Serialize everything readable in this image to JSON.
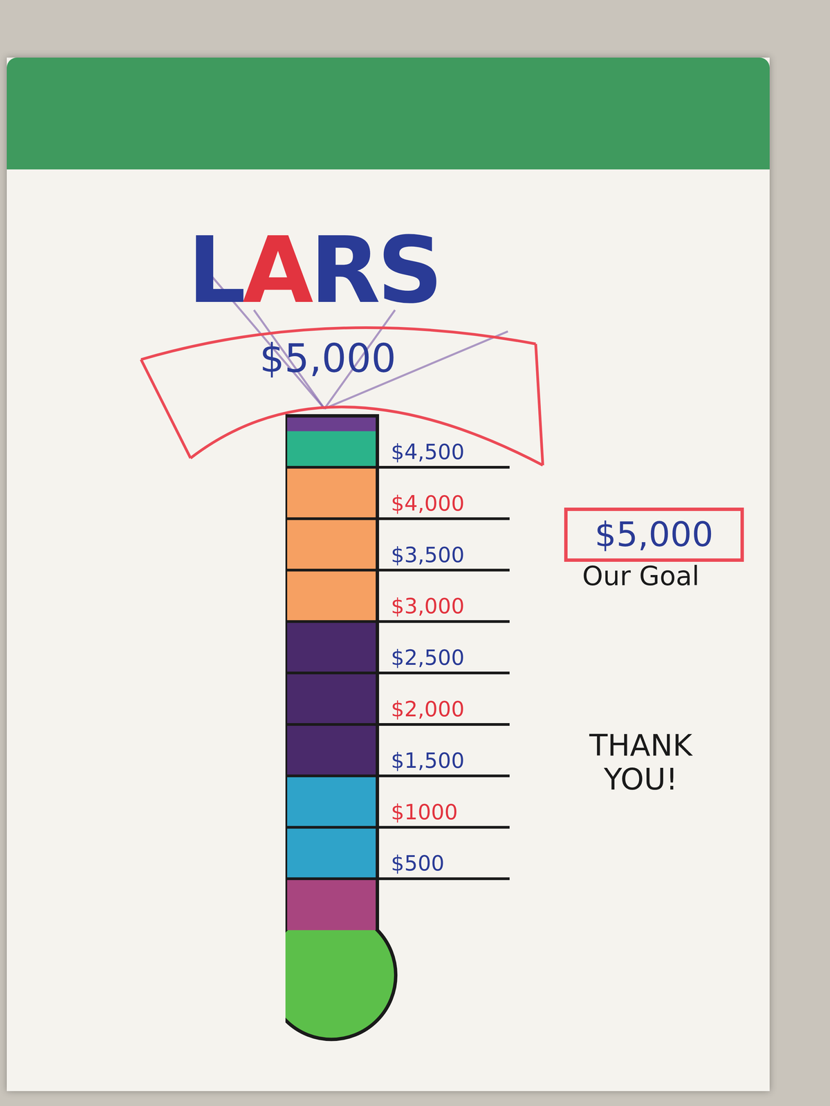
{
  "chart_data": {
    "type": "bar",
    "title": "LARS",
    "subtitle": "$5,000",
    "annotations": [
      "$5,000",
      "Our Goal",
      "THANK YOU!"
    ],
    "categories": [
      null
    ],
    "stacked": true,
    "series": [
      {
        "color": "#a8457f",
        "values": [
          500
        ]
      },
      {
        "color": "#2fa3c9",
        "values": [
          500
        ]
      },
      {
        "color": "#2fa3c9",
        "values": [
          500
        ]
      },
      {
        "color": "#4a2a6b",
        "values": [
          500
        ]
      },
      {
        "color": "#4a2a6b",
        "values": [
          500
        ]
      },
      {
        "color": "#4a2a6b",
        "values": [
          500
        ]
      },
      {
        "color": "#f6a062",
        "values": [
          500
        ]
      },
      {
        "color": "#f6a062",
        "values": [
          500
        ]
      },
      {
        "color": "#f6a062",
        "values": [
          500
        ]
      },
      {
        "color": "#2bb38a",
        "values": [
          350
        ]
      },
      {
        "color": "#6b3f8e",
        "values": [
          150
        ]
      }
    ],
    "ylim": [
      0,
      5000
    ],
    "yticks": [
      {
        "value": 500,
        "label": "$500"
      },
      {
        "value": 1000,
        "label": "$1000"
      },
      {
        "value": 1500,
        "label": "$1,500"
      },
      {
        "value": 2000,
        "label": "$2,000"
      },
      {
        "value": 2500,
        "label": "$2,500"
      },
      {
        "value": 3000,
        "label": "$3,000"
      },
      {
        "value": 3500,
        "label": "$3,500"
      },
      {
        "value": 4000,
        "label": "$4,000"
      },
      {
        "value": 4500,
        "label": "$4,500"
      }
    ],
    "grid": false,
    "tick_labels": "y"
  }
}
